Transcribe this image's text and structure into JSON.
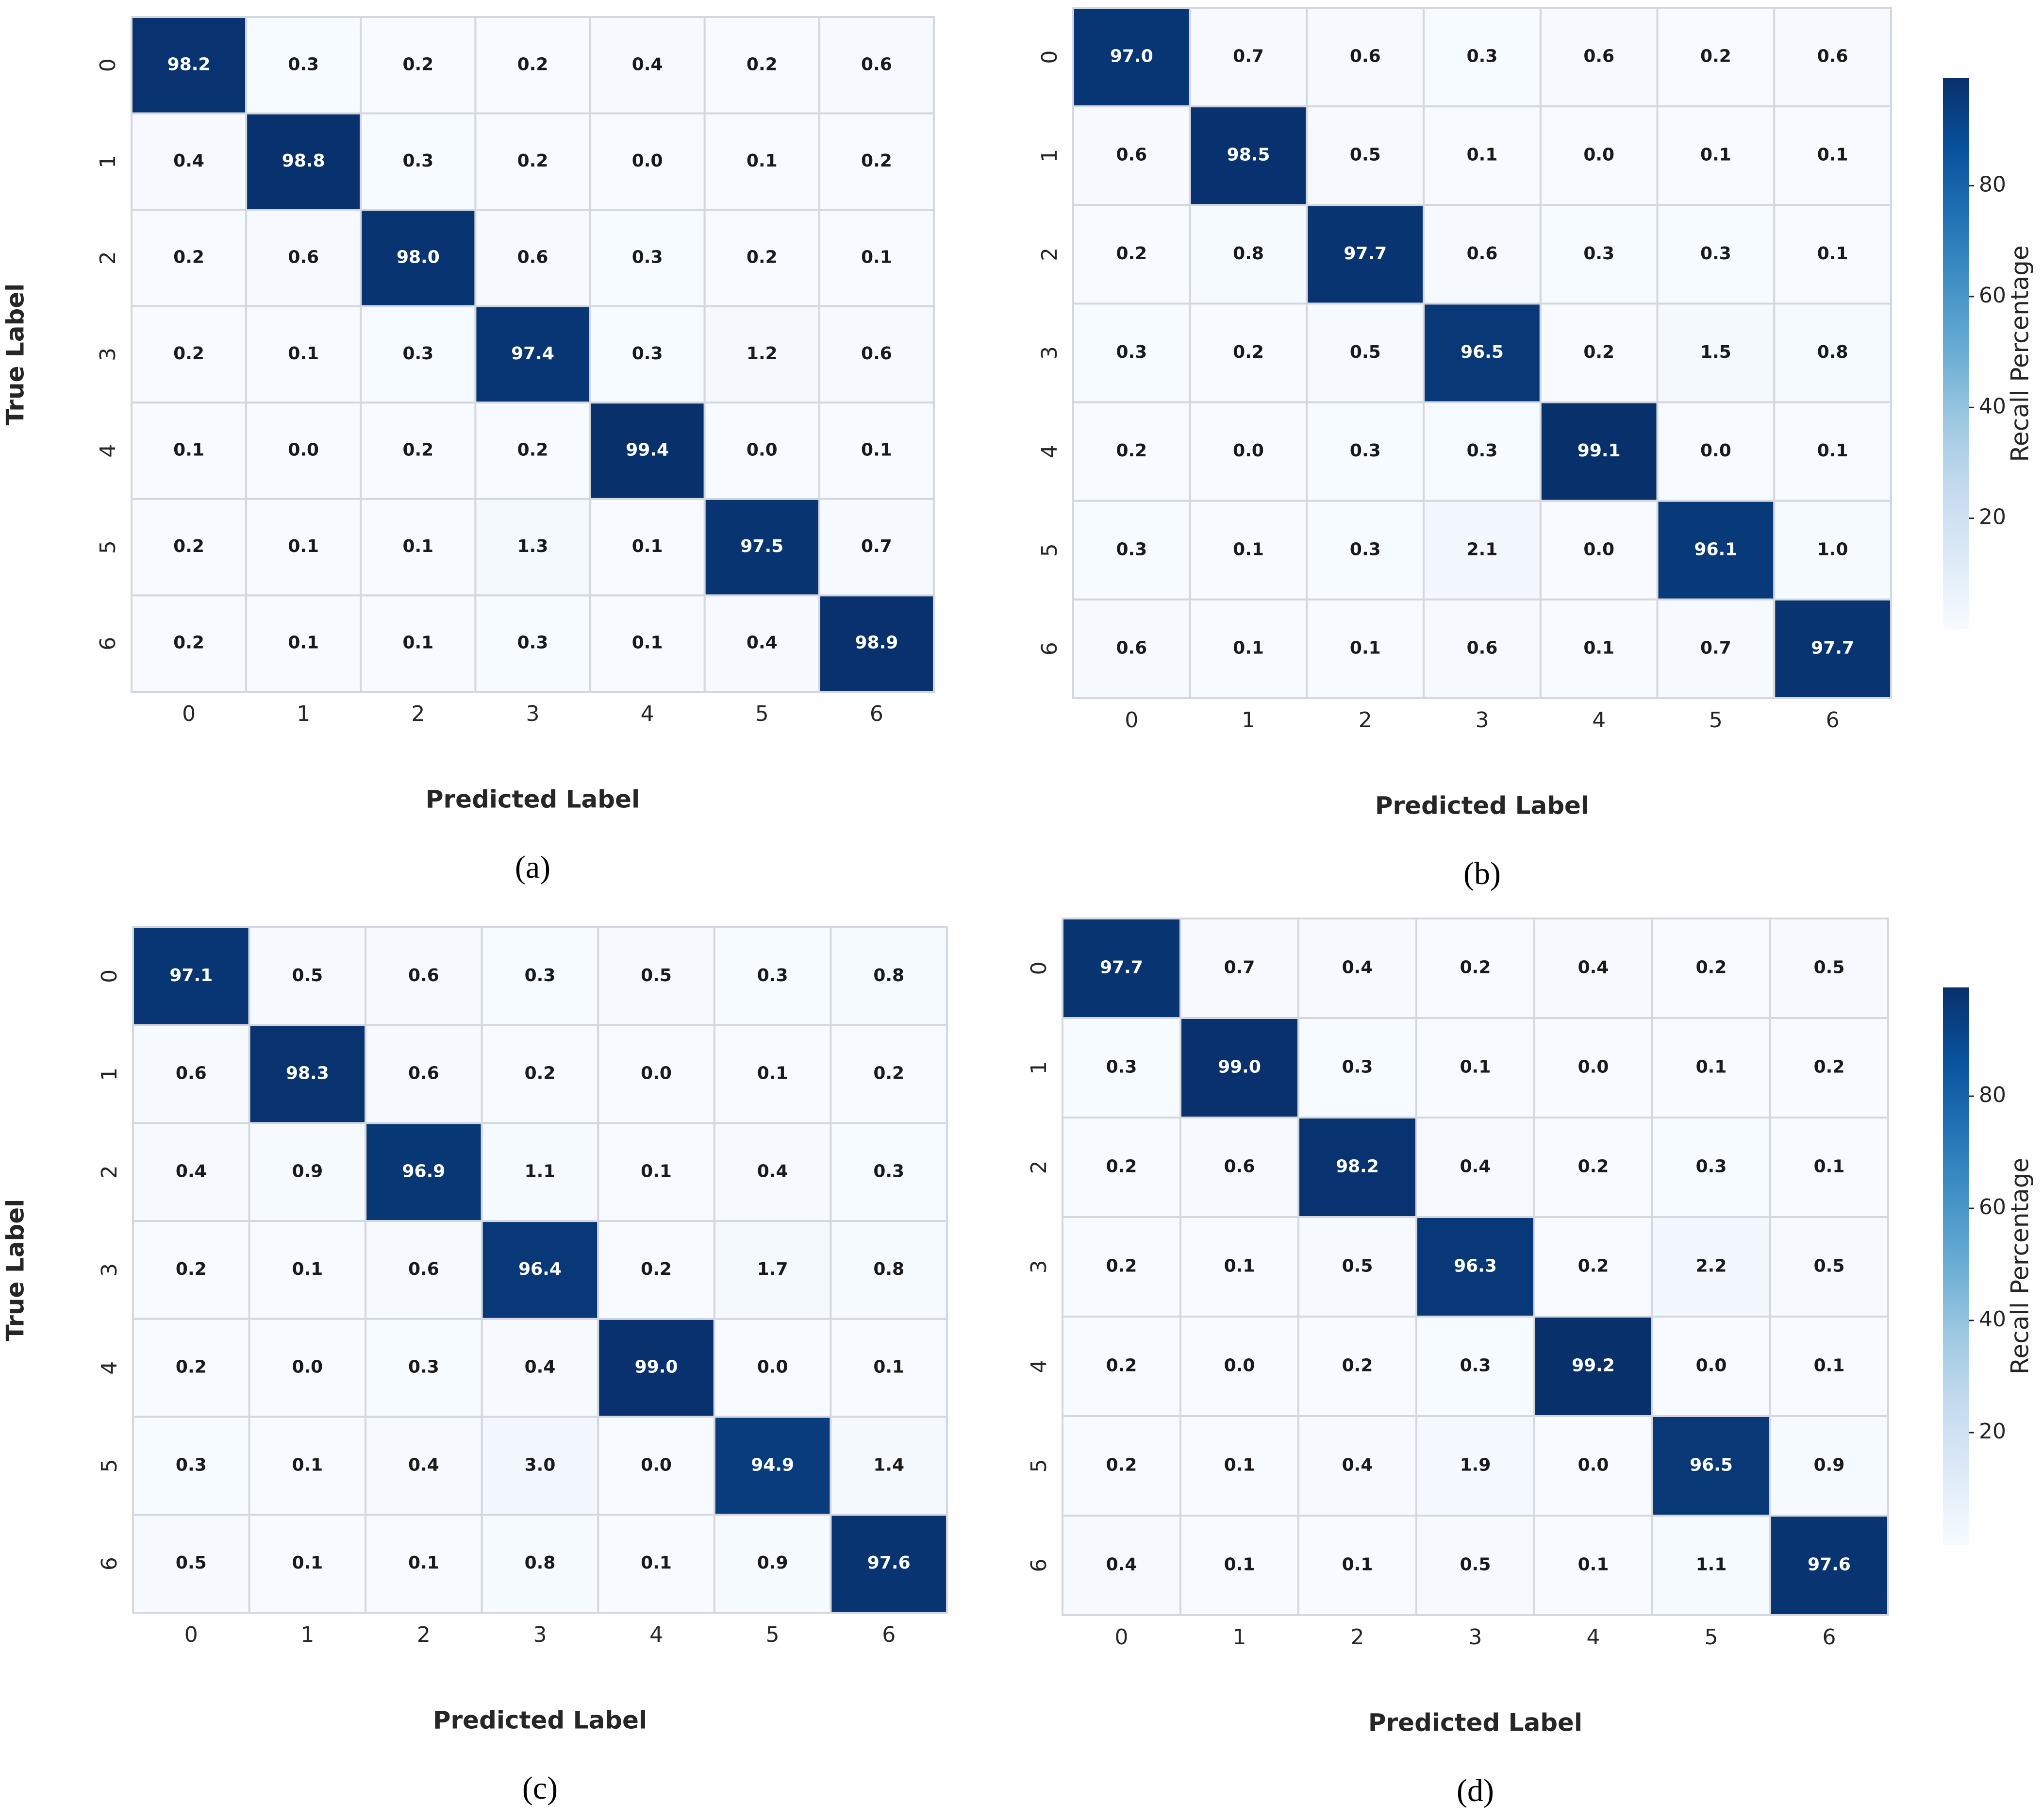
{
  "chart_data": [
    {
      "type": "heatmap",
      "caption": "(a)",
      "xlabel": "Predicted Label",
      "ylabel": "True Label",
      "colormap": "Blues",
      "clim": [
        0,
        99.4
      ],
      "x_categories": [
        "0",
        "1",
        "2",
        "3",
        "4",
        "5",
        "6"
      ],
      "y_categories": [
        "0",
        "1",
        "2",
        "3",
        "4",
        "5",
        "6"
      ],
      "values": [
        [
          98.2,
          0.3,
          0.2,
          0.2,
          0.4,
          0.2,
          0.6
        ],
        [
          0.4,
          98.8,
          0.3,
          0.2,
          0.0,
          0.1,
          0.2
        ],
        [
          0.2,
          0.6,
          98.0,
          0.6,
          0.3,
          0.2,
          0.1
        ],
        [
          0.2,
          0.1,
          0.3,
          97.4,
          0.3,
          1.2,
          0.6
        ],
        [
          0.1,
          0.0,
          0.2,
          0.2,
          99.4,
          0.0,
          0.1
        ],
        [
          0.2,
          0.1,
          0.1,
          1.3,
          0.1,
          97.5,
          0.7
        ],
        [
          0.2,
          0.1,
          0.1,
          0.3,
          0.1,
          0.4,
          98.9
        ]
      ],
      "value_labels": [
        [
          "98.2",
          "0.3",
          "0.2",
          "0.2",
          "0.4",
          "0.2",
          "0.6"
        ],
        [
          "0.4",
          "98.8",
          "0.3",
          "0.2",
          "0.0",
          "0.1",
          "0.2"
        ],
        [
          "0.2",
          "0.6",
          "98.0",
          "0.6",
          "0.3",
          "0.2",
          "0.1"
        ],
        [
          "0.2",
          "0.1",
          "0.3",
          "97.4",
          "0.3",
          "1.2",
          "0.6"
        ],
        [
          "0.1",
          "0.0",
          "0.2",
          "0.2",
          "99.4",
          "0.0",
          "0.1"
        ],
        [
          "0.2",
          "0.1",
          "0.1",
          "1.3",
          "0.1",
          "97.5",
          "0.7"
        ],
        [
          "0.2",
          "0.1",
          "0.1",
          "0.3",
          "0.1",
          "0.4",
          "98.9"
        ]
      ]
    },
    {
      "type": "heatmap",
      "caption": "(b)",
      "xlabel": "Predicted Label",
      "colormap": "Blues",
      "clim": [
        0,
        99.4
      ],
      "x_categories": [
        "0",
        "1",
        "2",
        "3",
        "4",
        "5",
        "6"
      ],
      "y_categories": [
        "0",
        "1",
        "2",
        "3",
        "4",
        "5",
        "6"
      ],
      "values": [
        [
          97.0,
          0.7,
          0.6,
          0.3,
          0.6,
          0.2,
          0.6
        ],
        [
          0.6,
          98.5,
          0.5,
          0.1,
          0.0,
          0.1,
          0.1
        ],
        [
          0.2,
          0.8,
          97.7,
          0.6,
          0.3,
          0.3,
          0.1
        ],
        [
          0.3,
          0.2,
          0.5,
          96.5,
          0.2,
          1.5,
          0.8
        ],
        [
          0.2,
          0.0,
          0.3,
          0.3,
          99.1,
          0.0,
          0.1
        ],
        [
          0.3,
          0.1,
          0.3,
          2.1,
          0.0,
          96.1,
          1.0
        ],
        [
          0.6,
          0.1,
          0.1,
          0.6,
          0.1,
          0.7,
          97.7
        ]
      ],
      "value_labels": [
        [
          "97.0",
          "0.7",
          "0.6",
          "0.3",
          "0.6",
          "0.2",
          "0.6"
        ],
        [
          "0.6",
          "98.5",
          "0.5",
          "0.1",
          "0.0",
          "0.1",
          "0.1"
        ],
        [
          "0.2",
          "0.8",
          "97.7",
          "0.6",
          "0.3",
          "0.3",
          "0.1"
        ],
        [
          "0.3",
          "0.2",
          "0.5",
          "96.5",
          "0.2",
          "1.5",
          "0.8"
        ],
        [
          "0.2",
          "0.0",
          "0.3",
          "0.3",
          "99.1",
          "0.0",
          "0.1"
        ],
        [
          "0.3",
          "0.1",
          "0.3",
          "2.1",
          "0.0",
          "96.1",
          "1.0"
        ],
        [
          "0.6",
          "0.1",
          "0.1",
          "0.6",
          "0.1",
          "0.7",
          "97.7"
        ]
      ],
      "colorbar": {
        "label": "Recall Percentage",
        "ticks": [
          20,
          40,
          60,
          80
        ]
      }
    },
    {
      "type": "heatmap",
      "caption": "(c)",
      "xlabel": "Predicted Label",
      "ylabel": "True Label",
      "colormap": "Blues",
      "clim": [
        0,
        99.4
      ],
      "x_categories": [
        "0",
        "1",
        "2",
        "3",
        "4",
        "5",
        "6"
      ],
      "y_categories": [
        "0",
        "1",
        "2",
        "3",
        "4",
        "5",
        "6"
      ],
      "values": [
        [
          97.1,
          0.5,
          0.6,
          0.3,
          0.5,
          0.3,
          0.8
        ],
        [
          0.6,
          98.3,
          0.6,
          0.2,
          0.0,
          0.1,
          0.2
        ],
        [
          0.4,
          0.9,
          96.9,
          1.1,
          0.1,
          0.4,
          0.3
        ],
        [
          0.2,
          0.1,
          0.6,
          96.4,
          0.2,
          1.7,
          0.8
        ],
        [
          0.2,
          0.0,
          0.3,
          0.4,
          99.0,
          0.0,
          0.1
        ],
        [
          0.3,
          0.1,
          0.4,
          3.0,
          0.0,
          94.9,
          1.4
        ],
        [
          0.5,
          0.1,
          0.1,
          0.8,
          0.1,
          0.9,
          97.6
        ]
      ],
      "value_labels": [
        [
          "97.1",
          "0.5",
          "0.6",
          "0.3",
          "0.5",
          "0.3",
          "0.8"
        ],
        [
          "0.6",
          "98.3",
          "0.6",
          "0.2",
          "0.0",
          "0.1",
          "0.2"
        ],
        [
          "0.4",
          "0.9",
          "96.9",
          "1.1",
          "0.1",
          "0.4",
          "0.3"
        ],
        [
          "0.2",
          "0.1",
          "0.6",
          "96.4",
          "0.2",
          "1.7",
          "0.8"
        ],
        [
          "0.2",
          "0.0",
          "0.3",
          "0.4",
          "99.0",
          "0.0",
          "0.1"
        ],
        [
          "0.3",
          "0.1",
          "0.4",
          "3.0",
          "0.0",
          "94.9",
          "1.4"
        ],
        [
          "0.5",
          "0.1",
          "0.1",
          "0.8",
          "0.1",
          "0.9",
          "97.6"
        ]
      ]
    },
    {
      "type": "heatmap",
      "caption": "(d)",
      "xlabel": "Predicted Label",
      "colormap": "Blues",
      "clim": [
        0,
        99.4
      ],
      "x_categories": [
        "0",
        "1",
        "2",
        "3",
        "4",
        "5",
        "6"
      ],
      "y_categories": [
        "0",
        "1",
        "2",
        "3",
        "4",
        "5",
        "6"
      ],
      "values": [
        [
          97.7,
          0.7,
          0.4,
          0.2,
          0.4,
          0.2,
          0.5
        ],
        [
          0.3,
          99.0,
          0.3,
          0.1,
          0.0,
          0.1,
          0.2
        ],
        [
          0.2,
          0.6,
          98.2,
          0.4,
          0.2,
          0.3,
          0.1
        ],
        [
          0.2,
          0.1,
          0.5,
          96.3,
          0.2,
          2.2,
          0.5
        ],
        [
          0.2,
          0.0,
          0.2,
          0.3,
          99.2,
          0.0,
          0.1
        ],
        [
          0.2,
          0.1,
          0.4,
          1.9,
          0.0,
          96.5,
          0.9
        ],
        [
          0.4,
          0.1,
          0.1,
          0.5,
          0.1,
          1.1,
          97.6
        ]
      ],
      "value_labels": [
        [
          "97.7",
          "0.7",
          "0.4",
          "0.2",
          "0.4",
          "0.2",
          "0.5"
        ],
        [
          "0.3",
          "99.0",
          "0.3",
          "0.1",
          "0.0",
          "0.1",
          "0.2"
        ],
        [
          "0.2",
          "0.6",
          "98.2",
          "0.4",
          "0.2",
          "0.3",
          "0.1"
        ],
        [
          "0.2",
          "0.1",
          "0.5",
          "96.3",
          "0.2",
          "2.2",
          "0.5"
        ],
        [
          "0.2",
          "0.0",
          "0.2",
          "0.3",
          "99.2",
          "0.0",
          "0.1"
        ],
        [
          "0.2",
          "0.1",
          "0.4",
          "1.9",
          "0.0",
          "96.5",
          "0.9"
        ],
        [
          "0.4",
          "0.1",
          "0.1",
          "0.5",
          "0.1",
          "1.1",
          "97.6"
        ]
      ],
      "colorbar": {
        "label": "Recall Percentage",
        "ticks": [
          20,
          40,
          60,
          80
        ]
      }
    }
  ]
}
